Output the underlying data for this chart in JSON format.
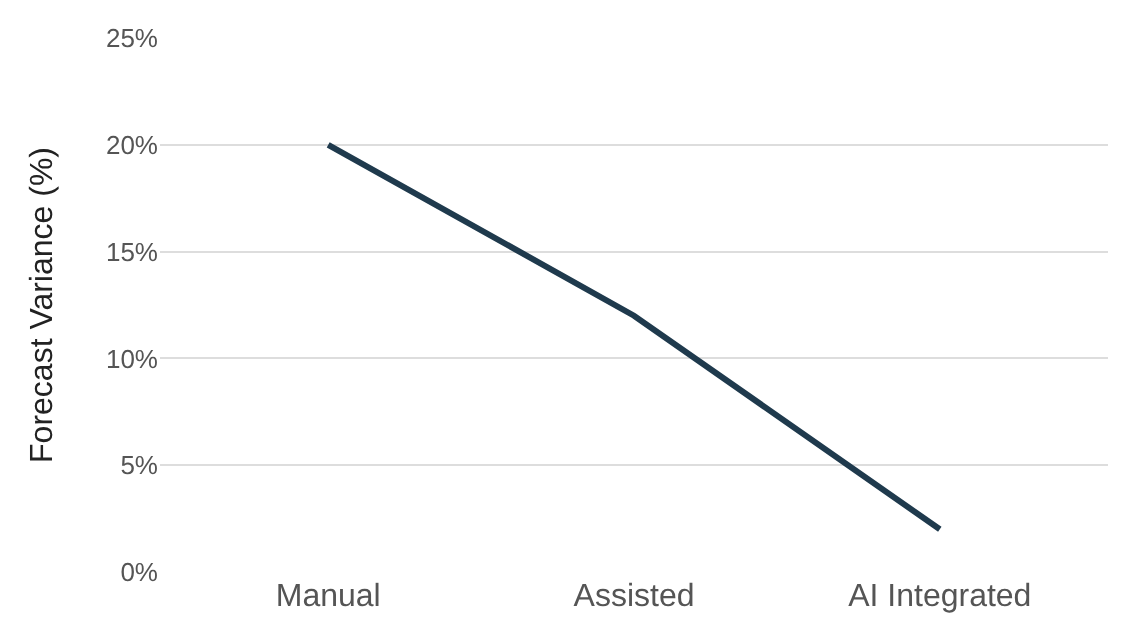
{
  "chart_data": {
    "type": "line",
    "ylabel": "Forecast Variance (%)",
    "categories": [
      "Manual",
      "Assisted",
      "AI Integrated"
    ],
    "series": [
      {
        "color": "#1f3a4d",
        "values": [
          20,
          12,
          2
        ]
      }
    ],
    "ylim": [
      0,
      25
    ],
    "yticks": [
      {
        "value": 0,
        "label": "0%"
      },
      {
        "value": 5,
        "label": "5%"
      },
      {
        "value": 10,
        "label": "10%"
      },
      {
        "value": 15,
        "label": "15%"
      },
      {
        "value": 20,
        "label": "20%"
      },
      {
        "value": 25,
        "label": "25%"
      }
    ],
    "grid": "y",
    "marker": "none",
    "line_style": "solid"
  }
}
